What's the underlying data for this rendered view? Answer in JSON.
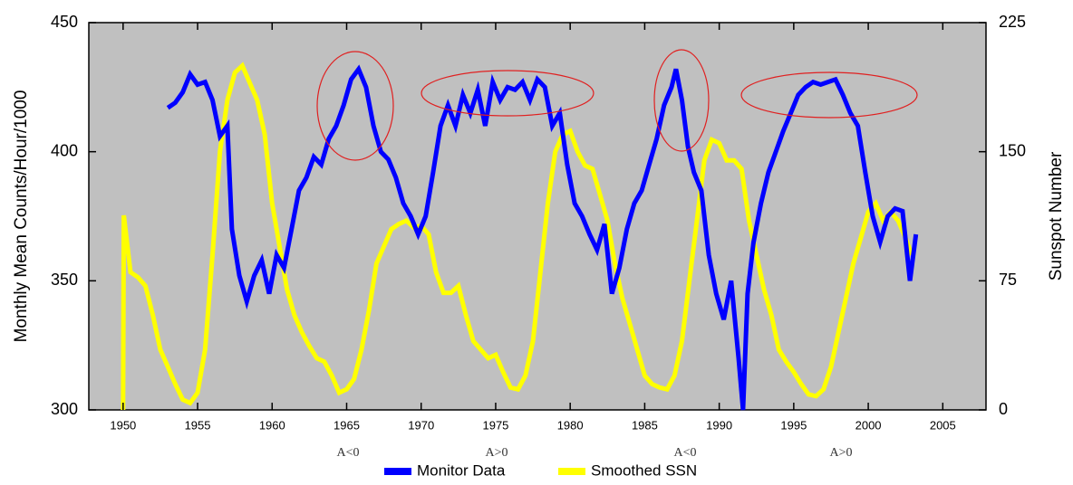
{
  "chart_data": {
    "type": "line",
    "y_label": "Monthly Mean Counts/Hour/1000",
    "y2_label": "Sunspot Number",
    "xlim": [
      1947.7,
      2007.9
    ],
    "xticks": [
      1950,
      1955,
      1960,
      1965,
      1970,
      1975,
      1980,
      1985,
      1990,
      1995,
      2000,
      2005
    ],
    "ylim": [
      300,
      450
    ],
    "yticks": [
      300,
      350,
      400,
      450
    ],
    "y2lim": [
      0,
      225
    ],
    "y2ticks": [
      0,
      75,
      150,
      225
    ],
    "annotations": [
      "A<0",
      "A>0",
      "A<0",
      "A>0"
    ],
    "series": [
      {
        "name": "Monitor Data",
        "color": "#0000ff",
        "axis": "y",
        "x": [
          1953.0,
          1953.5,
          1954.0,
          1954.5,
          1955.0,
          1955.5,
          1956.0,
          1956.5,
          1957.0,
          1957.3,
          1957.8,
          1958.3,
          1958.8,
          1959.3,
          1959.8,
          1960.3,
          1960.8,
          1961.3,
          1961.8,
          1962.3,
          1962.8,
          1963.3,
          1963.8,
          1964.3,
          1964.8,
          1965.3,
          1965.8,
          1966.3,
          1966.8,
          1967.3,
          1967.8,
          1968.3,
          1968.8,
          1969.3,
          1969.8,
          1970.3,
          1970.8,
          1971.3,
          1971.8,
          1972.3,
          1972.8,
          1973.3,
          1973.8,
          1974.3,
          1974.8,
          1975.3,
          1975.8,
          1976.3,
          1976.8,
          1977.3,
          1977.8,
          1978.3,
          1978.8,
          1979.3,
          1979.8,
          1980.3,
          1980.8,
          1981.3,
          1981.8,
          1982.3,
          1982.8,
          1983.3,
          1983.8,
          1984.3,
          1984.8,
          1985.3,
          1985.8,
          1986.3,
          1986.8,
          1987.1,
          1987.5,
          1987.9,
          1988.3,
          1988.8,
          1989.3,
          1989.8,
          1990.3,
          1990.8,
          1991.3,
          1991.6,
          1991.9,
          1992.3,
          1992.8,
          1993.3,
          1993.8,
          1994.3,
          1994.8,
          1995.3,
          1995.8,
          1996.3,
          1996.8,
          1997.3,
          1997.8,
          1998.3,
          1998.8,
          1999.3,
          1999.8,
          2000.3,
          2000.8,
          2001.3,
          2001.8,
          2002.3,
          2002.8,
          2003.2
        ],
        "values": [
          417,
          419,
          423,
          430,
          426,
          427,
          420,
          406,
          410,
          370,
          352,
          342,
          352,
          358,
          345,
          360,
          355,
          370,
          385,
          390,
          398,
          395,
          405,
          410,
          418,
          428,
          432,
          425,
          410,
          400,
          397,
          390,
          380,
          375,
          368,
          375,
          392,
          410,
          418,
          410,
          422,
          415,
          424,
          410,
          427,
          420,
          425,
          424,
          427,
          420,
          428,
          425,
          410,
          415,
          395,
          380,
          375,
          368,
          362,
          372,
          345,
          355,
          370,
          380,
          385,
          395,
          405,
          418,
          425,
          432,
          420,
          402,
          392,
          385,
          360,
          345,
          335,
          350,
          320,
          300,
          345,
          365,
          380,
          392,
          400,
          408,
          415,
          422,
          425,
          427,
          426,
          427,
          428,
          422,
          415,
          410,
          392,
          375,
          365,
          375,
          378,
          377,
          350,
          368
        ]
      },
      {
        "name": "Smoothed SSN",
        "color": "#ffff00",
        "axis": "y2",
        "x": [
          1950.0,
          1950.05,
          1950.5,
          1951.0,
          1951.5,
          1952.0,
          1952.5,
          1953.0,
          1953.5,
          1954.0,
          1954.5,
          1955.0,
          1955.5,
          1956.0,
          1956.5,
          1957.0,
          1957.5,
          1958.0,
          1958.5,
          1959.0,
          1959.5,
          1960.0,
          1960.5,
          1961.0,
          1961.5,
          1962.0,
          1962.5,
          1963.0,
          1963.5,
          1964.0,
          1964.5,
          1965.0,
          1965.5,
          1966.0,
          1966.5,
          1967.0,
          1967.5,
          1968.0,
          1968.5,
          1969.0,
          1969.5,
          1970.0,
          1970.5,
          1971.0,
          1971.5,
          1972.0,
          1972.5,
          1973.0,
          1973.5,
          1974.0,
          1974.5,
          1975.0,
          1975.5,
          1976.0,
          1976.5,
          1977.0,
          1977.5,
          1978.0,
          1978.5,
          1979.0,
          1979.5,
          1980.0,
          1980.5,
          1981.0,
          1981.5,
          1982.0,
          1982.5,
          1983.0,
          1983.5,
          1984.0,
          1984.5,
          1985.0,
          1985.5,
          1986.0,
          1986.5,
          1987.0,
          1987.5,
          1988.0,
          1988.5,
          1989.0,
          1989.5,
          1990.0,
          1990.5,
          1991.0,
          1991.5,
          1992.0,
          1992.5,
          1993.0,
          1993.5,
          1994.0,
          1994.5,
          1995.0,
          1995.5,
          1996.0,
          1996.5,
          1997.0,
          1997.5,
          1998.0,
          1998.5,
          1999.0,
          1999.5,
          2000.0,
          2000.5,
          2001.0,
          2001.5,
          2002.0,
          2002.5,
          2002.9
        ],
        "values": [
          0,
          113,
          80,
          77,
          72,
          55,
          35,
          25,
          15,
          6,
          4,
          10,
          35,
          90,
          150,
          180,
          196,
          200,
          190,
          180,
          160,
          120,
          95,
          70,
          55,
          45,
          37,
          30,
          28,
          20,
          10,
          12,
          18,
          35,
          58,
          85,
          95,
          105,
          108,
          110,
          106,
          107,
          102,
          80,
          68,
          68,
          72,
          55,
          40,
          35,
          30,
          32,
          22,
          13,
          12,
          20,
          40,
          80,
          120,
          150,
          160,
          162,
          150,
          142,
          140,
          125,
          110,
          85,
          65,
          50,
          35,
          20,
          15,
          13,
          12,
          20,
          40,
          75,
          110,
          145,
          157,
          155,
          145,
          145,
          140,
          110,
          90,
          70,
          55,
          35,
          28,
          22,
          15,
          9,
          8,
          12,
          25,
          45,
          65,
          85,
          100,
          115,
          120,
          110,
          115,
          110,
          100,
          90
        ]
      }
    ]
  }
}
